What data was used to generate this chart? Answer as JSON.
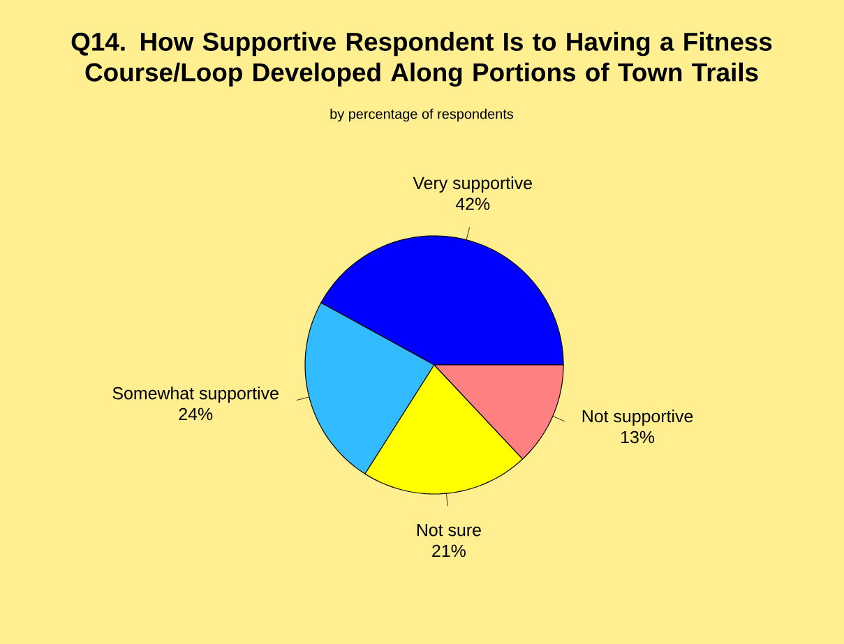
{
  "chart_data": {
    "type": "pie",
    "title": "Q14.  How Supportive Respondent Is to Having a Fitness Course/Loop Developed Along Portions of Town Trails",
    "subtitle": "by percentage of respondents",
    "categories": [
      "Very supportive",
      "Somewhat supportive",
      "Not sure",
      "Not supportive"
    ],
    "values": [
      42,
      24,
      21,
      13
    ],
    "value_labels": [
      "42%",
      "24%",
      "21%",
      "13%"
    ],
    "colors": [
      "#0000ff",
      "#33bbff",
      "#ffff00",
      "#ff8080"
    ]
  }
}
